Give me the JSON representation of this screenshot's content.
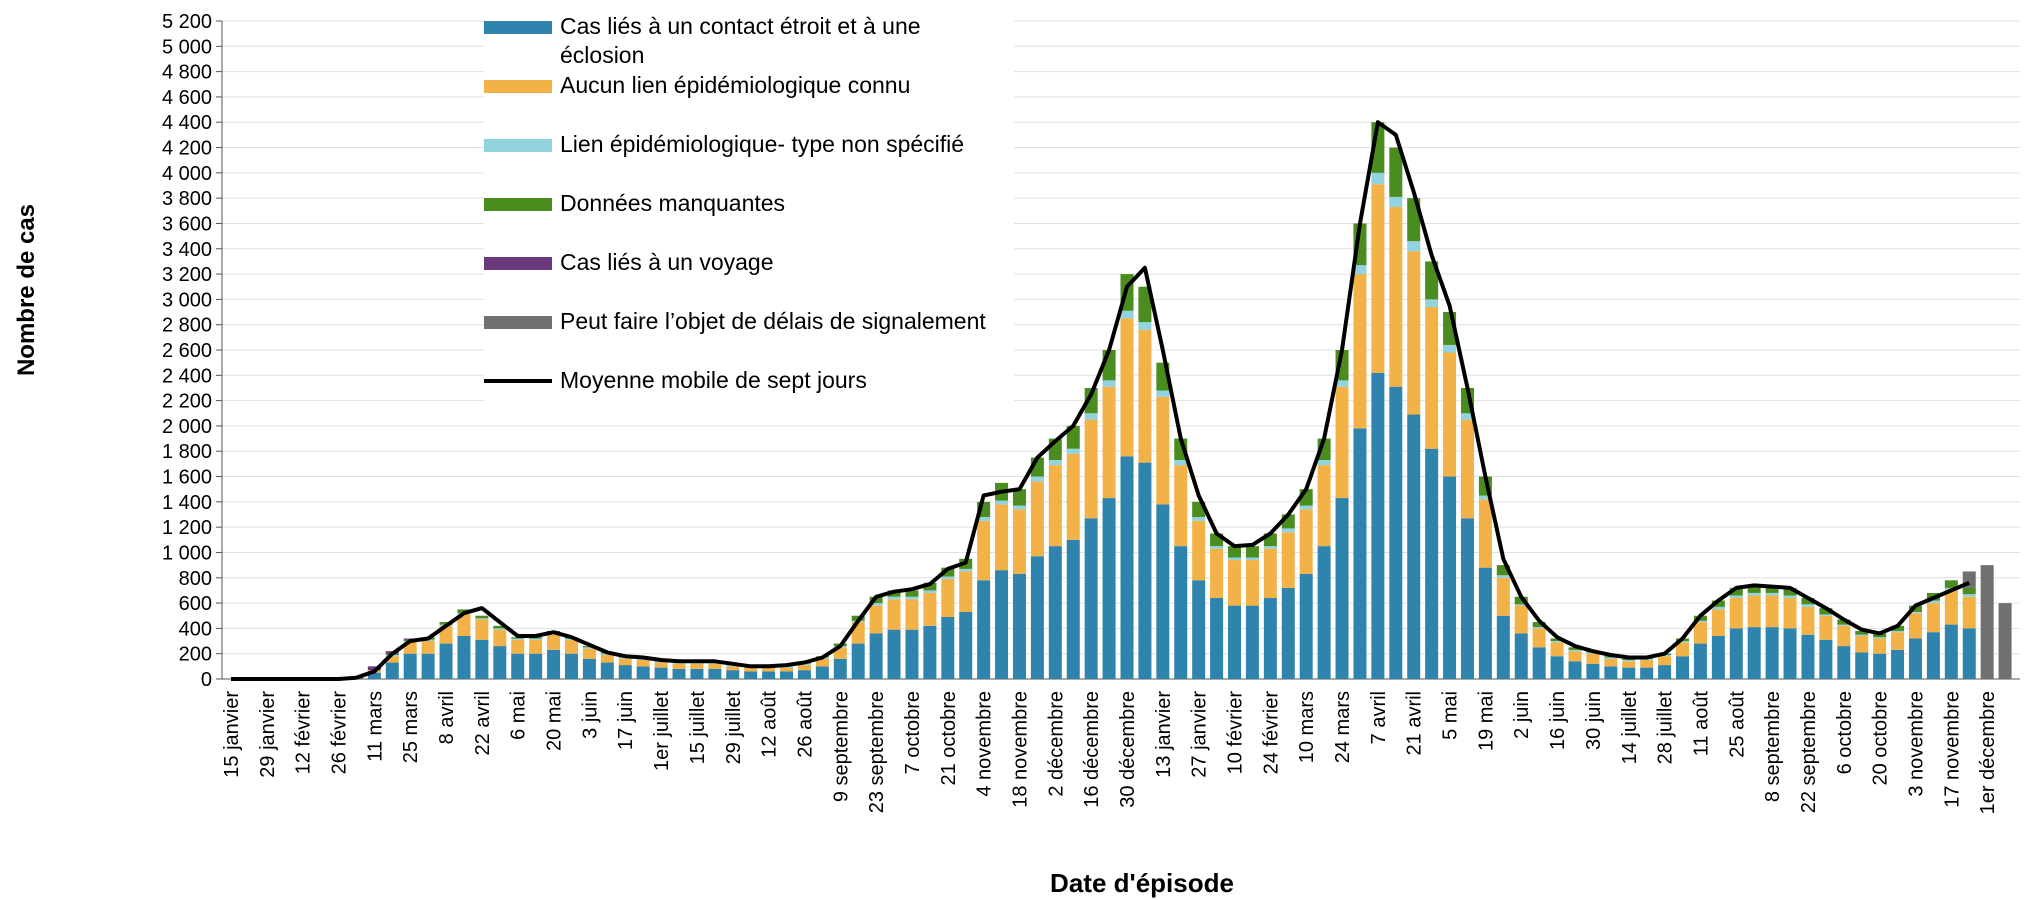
{
  "chart_data": {
    "type": "stacked-bar",
    "y_label": "Nombre de cas",
    "x_label": "Date d'épisode",
    "categories": [
      "15 janvier",
      null,
      "29 janvier",
      null,
      "12 février",
      null,
      "26 février",
      null,
      "11 mars",
      null,
      "25 mars",
      null,
      "8 avril",
      null,
      "22 avril",
      null,
      "6 mai",
      null,
      "20 mai",
      null,
      "3 juin",
      null,
      "17 juin",
      null,
      "1er juillet",
      null,
      "15 juillet",
      null,
      "29 juillet",
      null,
      "12 août",
      null,
      "26 août",
      null,
      "9 septembre",
      null,
      "23 septembre",
      null,
      "7 octobre",
      null,
      "21 octobre",
      null,
      "4 novembre",
      null,
      "18 novembre",
      null,
      "2 décembre",
      null,
      "16 décembre",
      null,
      "30 décembre",
      null,
      "13 janvier",
      null,
      "27 janvier",
      null,
      "10 février",
      null,
      "24 février",
      null,
      "10 mars",
      null,
      "24 mars",
      null,
      "7 avril",
      null,
      "21 avril",
      null,
      "5 mai",
      null,
      "19 mai",
      null,
      "2 juin",
      null,
      "16 juin",
      null,
      "30 juin",
      null,
      "14 juillet",
      null,
      "28 juillet",
      null,
      "11 août",
      null,
      "25 août",
      null,
      "8 septembre",
      null,
      "22 septembre",
      null,
      "6 octobre",
      null,
      "20 octobre",
      null,
      "3 novembre",
      null,
      "17 novembre",
      null,
      "1er décembre",
      null
    ],
    "series": [
      {
        "name": "Cas liés à un contact étroit et à une éclosion",
        "color": "#2f84ad",
        "values": [
          0,
          0,
          0,
          0,
          0,
          0,
          3,
          10,
          50,
          130,
          200,
          200,
          280,
          340,
          310,
          260,
          200,
          200,
          230,
          200,
          160,
          130,
          110,
          100,
          90,
          80,
          80,
          80,
          70,
          60,
          60,
          60,
          70,
          100,
          160,
          280,
          360,
          390,
          390,
          420,
          490,
          530,
          780,
          860,
          830,
          970,
          1050,
          1100,
          1270,
          1430,
          1760,
          1710,
          1380,
          1050,
          780,
          640,
          580,
          580,
          640,
          720,
          830,
          1050,
          1430,
          1980,
          2420,
          2310,
          2090,
          1820,
          1600,
          1270,
          880,
          500,
          360,
          250,
          180,
          140,
          120,
          100,
          90,
          90,
          110,
          180,
          280,
          340,
          400,
          410,
          410,
          400,
          350,
          310,
          260,
          210,
          200,
          230,
          320,
          370,
          430,
          400,
          0,
          0
        ]
      },
      {
        "name": "Aucun lien épidémiologique connu",
        "color": "#f2b247",
        "values": [
          0,
          0,
          0,
          0,
          0,
          0,
          2,
          5,
          20,
          50,
          90,
          100,
          140,
          170,
          160,
          130,
          110,
          110,
          120,
          110,
          80,
          60,
          50,
          50,
          40,
          40,
          40,
          40,
          30,
          30,
          30,
          30,
          40,
          60,
          90,
          170,
          220,
          240,
          240,
          260,
          300,
          320,
          470,
          520,
          510,
          590,
          640,
          680,
          780,
          880,
          1090,
          1050,
          850,
          640,
          470,
          390,
          360,
          360,
          390,
          440,
          510,
          640,
          880,
          1220,
          1490,
          1420,
          1290,
          1120,
          980,
          780,
          540,
          300,
          220,
          150,
          110,
          80,
          80,
          60,
          50,
          60,
          70,
          110,
          170,
          210,
          240,
          250,
          250,
          240,
          220,
          190,
          160,
          130,
          120,
          140,
          200,
          230,
          270,
          250,
          0,
          0
        ]
      },
      {
        "name": "Lien épidémiologique- type non spécifié",
        "color": "#92d3e0",
        "values": [
          0,
          0,
          0,
          0,
          0,
          0,
          0,
          0,
          0,
          10,
          10,
          10,
          10,
          10,
          10,
          10,
          10,
          10,
          10,
          10,
          10,
          10,
          10,
          10,
          10,
          10,
          10,
          10,
          10,
          0,
          0,
          10,
          10,
          10,
          10,
          10,
          20,
          20,
          20,
          20,
          20,
          20,
          30,
          30,
          30,
          40,
          40,
          40,
          50,
          50,
          60,
          60,
          50,
          40,
          30,
          20,
          20,
          20,
          20,
          30,
          30,
          40,
          50,
          70,
          90,
          80,
          80,
          60,
          60,
          50,
          30,
          20,
          10,
          10,
          10,
          10,
          10,
          10,
          10,
          10,
          10,
          10,
          10,
          20,
          20,
          20,
          20,
          20,
          20,
          10,
          10,
          10,
          10,
          10,
          10,
          20,
          20,
          20,
          0,
          0
        ]
      },
      {
        "name": "Données manquantes",
        "color": "#4b8c1e",
        "values": [
          0,
          0,
          0,
          0,
          0,
          0,
          0,
          0,
          0,
          10,
          10,
          20,
          20,
          30,
          20,
          20,
          10,
          10,
          20,
          10,
          10,
          10,
          10,
          10,
          10,
          10,
          10,
          10,
          10,
          10,
          10,
          10,
          10,
          10,
          20,
          40,
          50,
          50,
          50,
          60,
          70,
          80,
          120,
          140,
          130,
          150,
          170,
          180,
          200,
          240,
          290,
          280,
          220,
          170,
          120,
          100,
          90,
          90,
          100,
          110,
          130,
          170,
          240,
          330,
          400,
          390,
          340,
          300,
          260,
          200,
          150,
          80,
          60,
          40,
          20,
          20,
          10,
          10,
          10,
          10,
          10,
          20,
          40,
          50,
          60,
          60,
          60,
          60,
          50,
          50,
          40,
          30,
          30,
          40,
          50,
          60,
          60,
          50,
          0,
          0
        ]
      },
      {
        "name": "Cas liés à un voyage",
        "color": "#6a3a7c",
        "values": [
          0,
          0,
          0,
          0,
          0,
          0,
          0,
          5,
          30,
          20,
          10,
          0,
          0,
          0,
          0,
          0,
          0,
          0,
          0,
          0,
          0,
          0,
          0,
          0,
          0,
          0,
          0,
          0,
          0,
          0,
          0,
          0,
          0,
          0,
          0,
          0,
          0,
          0,
          0,
          0,
          0,
          0,
          0,
          0,
          0,
          0,
          0,
          0,
          0,
          0,
          0,
          0,
          0,
          0,
          0,
          0,
          0,
          0,
          0,
          0,
          0,
          0,
          0,
          0,
          0,
          0,
          0,
          0,
          0,
          0,
          0,
          0,
          0,
          0,
          0,
          0,
          0,
          0,
          0,
          0,
          0,
          0,
          0,
          0,
          0,
          0,
          0,
          0,
          0,
          0,
          0,
          0,
          0,
          0,
          0,
          0,
          0,
          0,
          0,
          0
        ]
      },
      {
        "name": "Peut faire l’objet de délais de signalement",
        "color": "#707070",
        "values": [
          0,
          0,
          0,
          0,
          0,
          0,
          0,
          0,
          0,
          0,
          0,
          0,
          0,
          0,
          0,
          0,
          0,
          0,
          0,
          0,
          0,
          0,
          0,
          0,
          0,
          0,
          0,
          0,
          0,
          0,
          0,
          0,
          0,
          0,
          0,
          0,
          0,
          0,
          0,
          0,
          0,
          0,
          0,
          0,
          0,
          0,
          0,
          0,
          0,
          0,
          0,
          0,
          0,
          0,
          0,
          0,
          0,
          0,
          0,
          0,
          0,
          0,
          0,
          0,
          0,
          0,
          0,
          0,
          0,
          0,
          0,
          0,
          0,
          0,
          0,
          0,
          0,
          0,
          0,
          0,
          0,
          0,
          0,
          0,
          0,
          0,
          0,
          0,
          0,
          0,
          0,
          0,
          0,
          0,
          0,
          0,
          0,
          130,
          900,
          600
        ]
      }
    ],
    "line": {
      "name": "Moyenne mobile de sept jours",
      "color": "#000000",
      "values": [
        0,
        0,
        0,
        0,
        0,
        0,
        0,
        10,
        60,
        200,
        300,
        320,
        420,
        520,
        560,
        450,
        340,
        340,
        370,
        330,
        270,
        210,
        180,
        170,
        150,
        140,
        140,
        140,
        120,
        100,
        100,
        110,
        130,
        170,
        260,
        460,
        650,
        690,
        710,
        750,
        870,
        920,
        1450,
        1480,
        1500,
        1750,
        1880,
        2000,
        2250,
        2600,
        3100,
        3250,
        2600,
        1900,
        1450,
        1150,
        1050,
        1060,
        1150,
        1300,
        1500,
        1900,
        2600,
        3600,
        4400,
        4300,
        3850,
        3350,
        2950,
        2300,
        1600,
        950,
        650,
        460,
        330,
        260,
        220,
        190,
        170,
        170,
        200,
        320,
        500,
        620,
        720,
        740,
        730,
        720,
        640,
        560,
        470,
        390,
        360,
        420,
        580,
        640,
        700,
        760,
        null,
        null
      ]
    },
    "ylim": [
      0,
      5200
    ],
    "yticks": [
      0,
      200,
      400,
      600,
      800,
      {
        "value": 1000,
        "label": "1 000"
      },
      {
        "value": 1200,
        "label": "1 200"
      },
      {
        "value": 1400,
        "label": "1 400"
      },
      {
        "value": 1600,
        "label": "1 600"
      },
      {
        "value": 1800,
        "label": "1 800"
      },
      {
        "value": 2000,
        "label": "2 000"
      },
      {
        "value": 2200,
        "label": "2 200"
      },
      {
        "value": 2400,
        "label": "2 400"
      },
      {
        "value": 2600,
        "label": "2 600"
      },
      {
        "value": 2800,
        "label": "2 800"
      },
      {
        "value": 3000,
        "label": "3 000"
      },
      {
        "value": 3200,
        "label": "3 200"
      },
      {
        "value": 3400,
        "label": "3 400"
      },
      {
        "value": 3600,
        "label": "3 600"
      },
      {
        "value": 3800,
        "label": "3 800"
      },
      {
        "value": 4000,
        "label": "4 000"
      },
      {
        "value": 4200,
        "label": "4 200"
      },
      {
        "value": 4400,
        "label": "4 400"
      },
      {
        "value": 4600,
        "label": "4 600"
      },
      {
        "value": 4800,
        "label": "4 800"
      },
      {
        "value": 5000,
        "label": "5 000"
      },
      {
        "value": 5200,
        "label": "5 200"
      }
    ],
    "grid": true
  }
}
